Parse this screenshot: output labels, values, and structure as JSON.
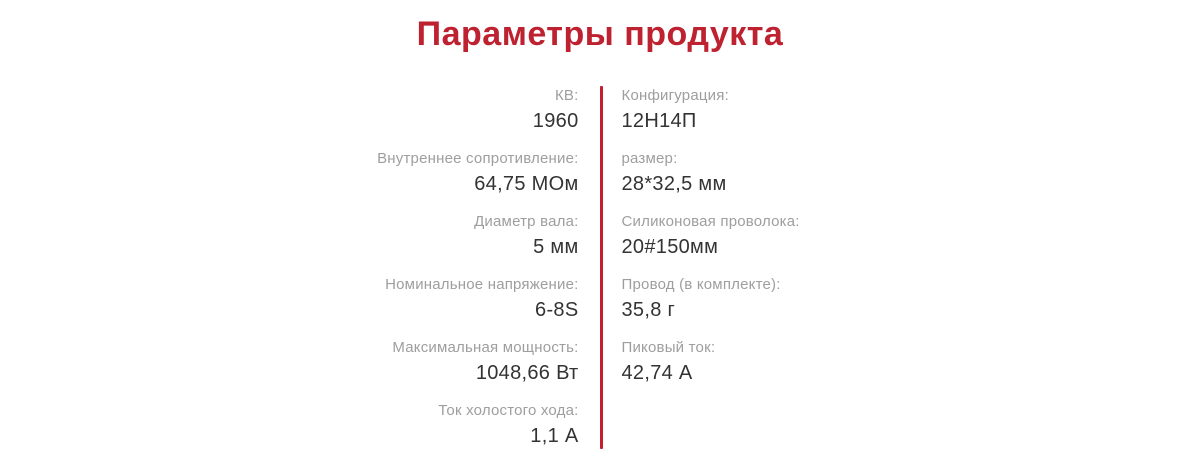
{
  "title": "Параметры продукта",
  "colors": {
    "accent": "#be2130",
    "divider": "#c41f31",
    "label_gray": "#9e9e9e",
    "value_dark": "#333333",
    "background": "#ffffff"
  },
  "left_column": [
    {
      "label": "КВ:",
      "value": "1960"
    },
    {
      "label": "Внутреннее сопротивление:",
      "value": "64,75 МОм"
    },
    {
      "label": "Диаметр вала:",
      "value": "5 мм"
    },
    {
      "label": "Номинальное напряжение:",
      "value": "6-8S"
    },
    {
      "label": "Максимальная мощность:",
      "value": "1048,66 Вт"
    },
    {
      "label": "Ток холостого хода:",
      "value": "1,1 А"
    }
  ],
  "right_column": [
    {
      "label": "Конфигурация:",
      "value": "12Н14П"
    },
    {
      "label": "размер:",
      "value": "28*32,5 мм"
    },
    {
      "label": "Силиконовая проволока:",
      "value": "20#150мм"
    },
    {
      "label": "Провод (в комплекте):",
      "value": "35,8 г"
    },
    {
      "label": "Пиковый ток:",
      "value": "42,74 А"
    }
  ]
}
